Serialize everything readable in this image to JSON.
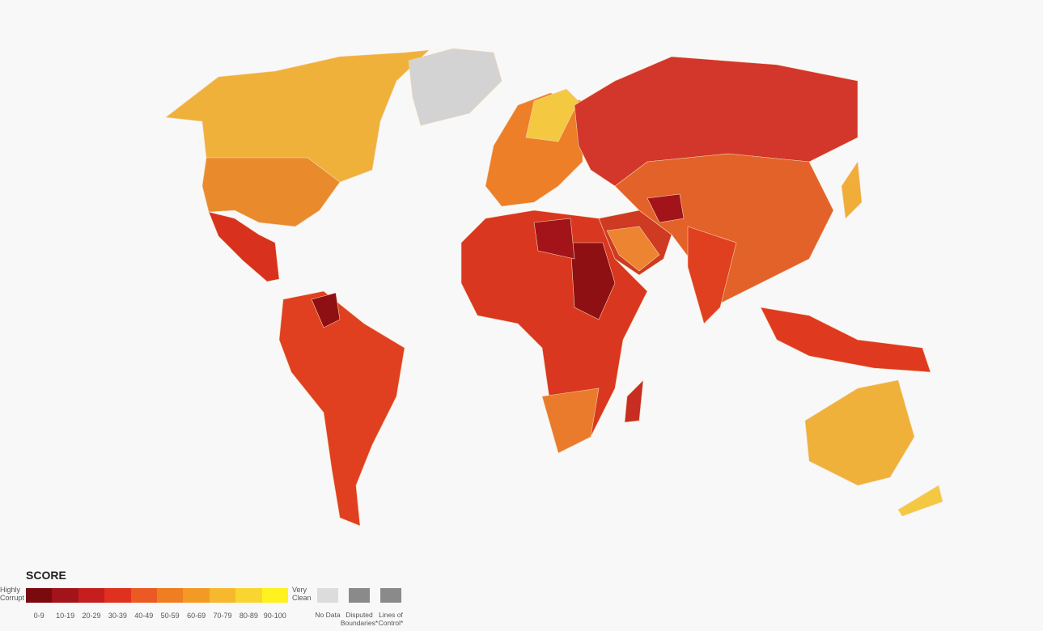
{
  "legend": {
    "title": "SCORE",
    "low_label": "Highly Corrupt",
    "high_label": "Very Clean",
    "bins": [
      {
        "label": "0-9",
        "color": "#7a0a0e"
      },
      {
        "label": "10-19",
        "color": "#a3131a"
      },
      {
        "label": "20-29",
        "color": "#c61e1e"
      },
      {
        "label": "30-39",
        "color": "#e0301e"
      },
      {
        "label": "40-49",
        "color": "#ea5a22"
      },
      {
        "label": "50-59",
        "color": "#ef7d21"
      },
      {
        "label": "60-69",
        "color": "#f39a25"
      },
      {
        "label": "70-79",
        "color": "#f6b82c"
      },
      {
        "label": "80-89",
        "color": "#f9d52f"
      },
      {
        "label": "90-100",
        "color": "#fff21e"
      }
    ],
    "extras": [
      {
        "label": "No Data",
        "color": "#dcdcdc"
      },
      {
        "label": "Disputed Boundaries*",
        "color": "#8a8a8a"
      },
      {
        "label": "Lines of Control*",
        "color": "#8a8a8a"
      }
    ]
  }
}
